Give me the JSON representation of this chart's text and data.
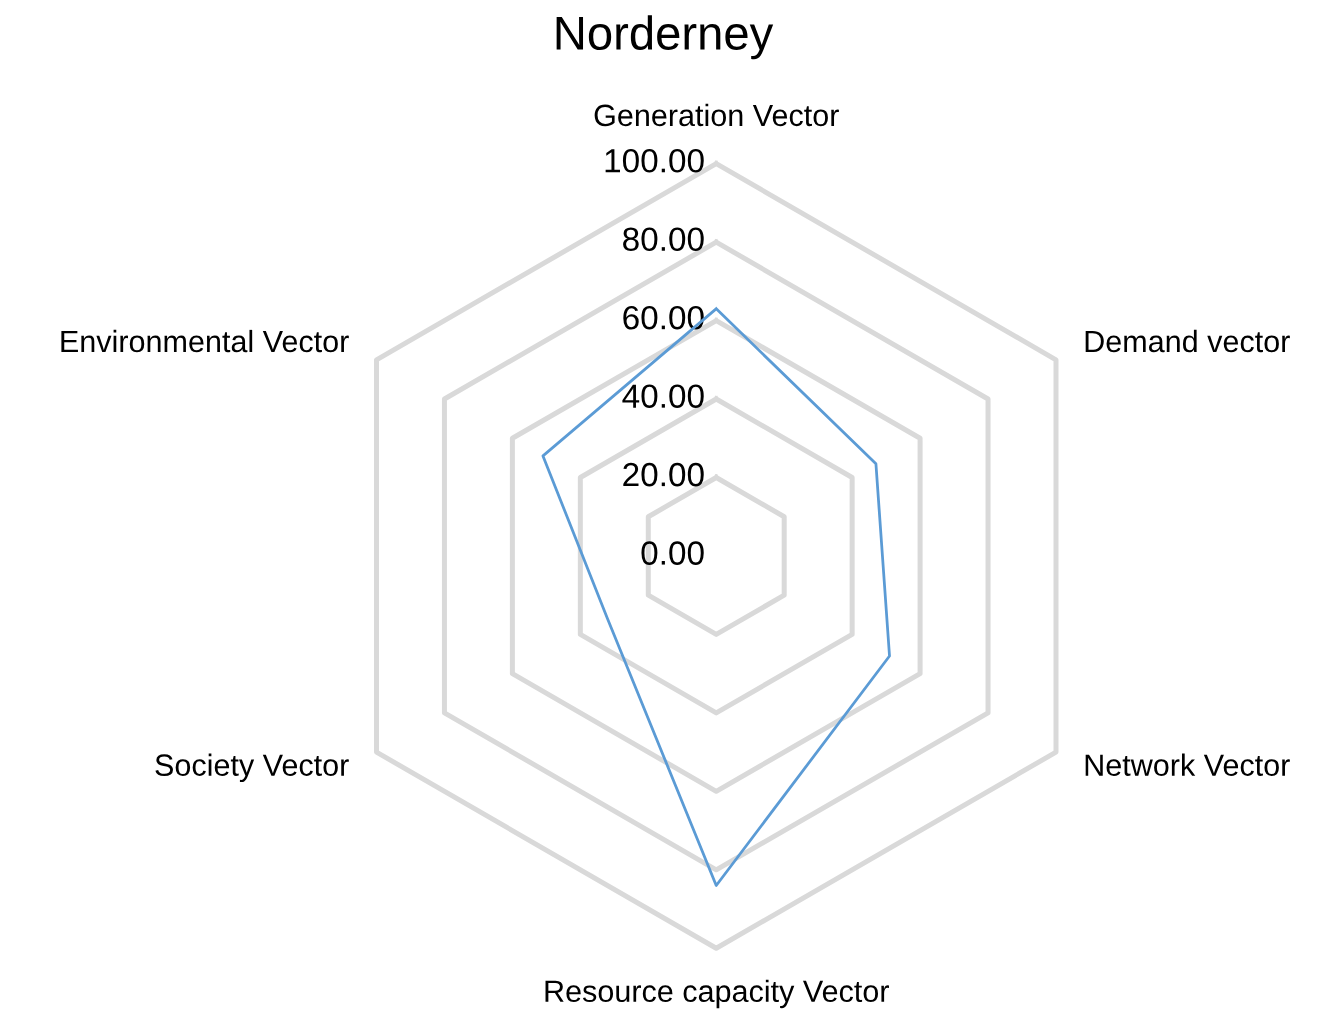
{
  "chart_data": {
    "type": "radar",
    "title": "Norderney",
    "categories": [
      "Generation Vector",
      "Demand vector",
      "Network Vector",
      "Resource capacity Vector",
      "Society Vector",
      "Environmental Vector"
    ],
    "series": [
      {
        "color": "#5b9bd5",
        "values": [
          63,
          47,
          51,
          84,
          32,
          51
        ]
      }
    ],
    "ylim": [
      0,
      100
    ],
    "yticks": [
      {
        "value": 0,
        "label": "0.00"
      },
      {
        "value": 20,
        "label": "20.00"
      },
      {
        "value": 40,
        "label": "40.00"
      },
      {
        "value": 60,
        "label": "60.00"
      },
      {
        "value": 80,
        "label": "80.00"
      },
      {
        "value": 100,
        "label": "100.00"
      }
    ],
    "grid": true,
    "marker": "none",
    "line_style": "solid"
  }
}
